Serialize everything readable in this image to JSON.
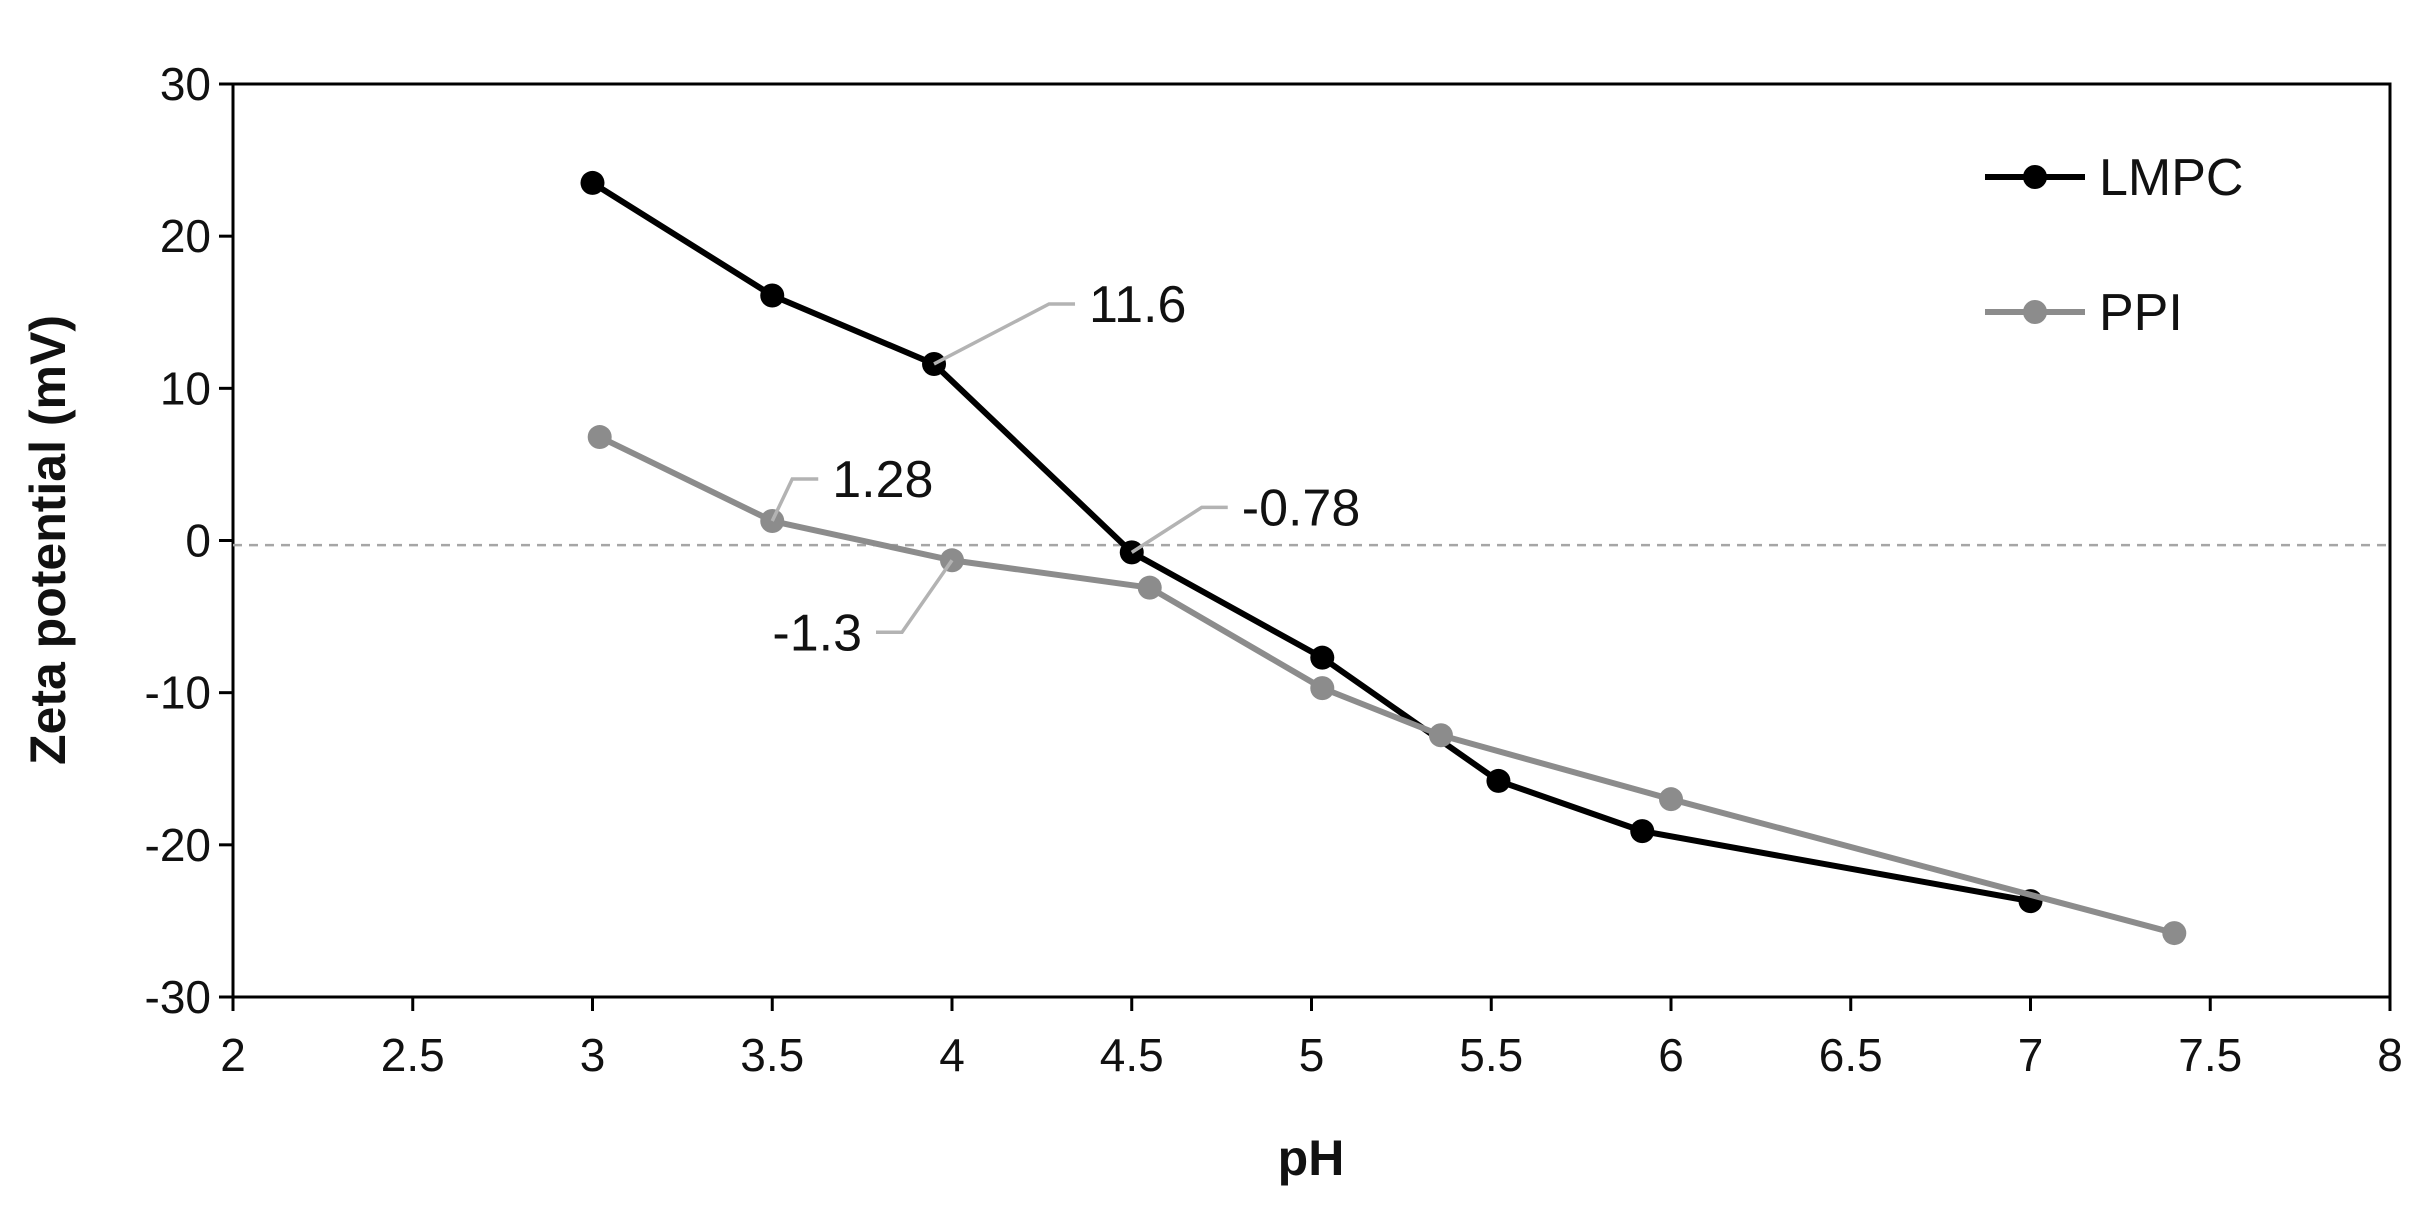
{
  "chart_data": {
    "type": "line",
    "xlabel": "pH",
    "ylabel": "Zeta potential (mV)",
    "xlim": [
      2,
      8
    ],
    "ylim": [
      -30,
      30
    ],
    "xticks": [
      "2",
      "2.5",
      "3",
      "3.5",
      "4",
      "4.5",
      "5",
      "5.5",
      "6",
      "6.5",
      "7",
      "7.5",
      "8"
    ],
    "yticks": [
      "30",
      "20",
      "10",
      "0",
      "-10",
      "-20",
      "-30"
    ],
    "grid": false,
    "legend": "top-right",
    "reference_line": {
      "y": -0.3,
      "style": "dashed"
    },
    "series": [
      {
        "name": "LMPC",
        "color": "#000000",
        "x": [
          3.0,
          3.5,
          3.95,
          4.5,
          5.03,
          5.52,
          5.92,
          7.0
        ],
        "y": [
          23.5,
          16.1,
          11.6,
          -0.78,
          -7.7,
          -15.8,
          -19.1,
          -23.7
        ]
      },
      {
        "name": "PPI",
        "color": "#8c8c8c",
        "x": [
          3.02,
          3.5,
          4.0,
          4.55,
          5.03,
          5.36,
          6.0,
          7.4
        ],
        "y": [
          6.8,
          1.28,
          -1.3,
          -3.1,
          -9.7,
          -12.8,
          -17.0,
          -25.8
        ]
      }
    ],
    "annotations": [
      {
        "text": "11.6",
        "series": "LMPC",
        "x": 3.95,
        "y": 11.6
      },
      {
        "text": "-0.78",
        "series": "LMPC",
        "x": 4.5,
        "y": -0.78
      },
      {
        "text": "1.28",
        "series": "PPI",
        "x": 3.5,
        "y": 1.28
      },
      {
        "text": "-1.3",
        "series": "PPI",
        "x": 4.0,
        "y": -1.3
      }
    ]
  }
}
